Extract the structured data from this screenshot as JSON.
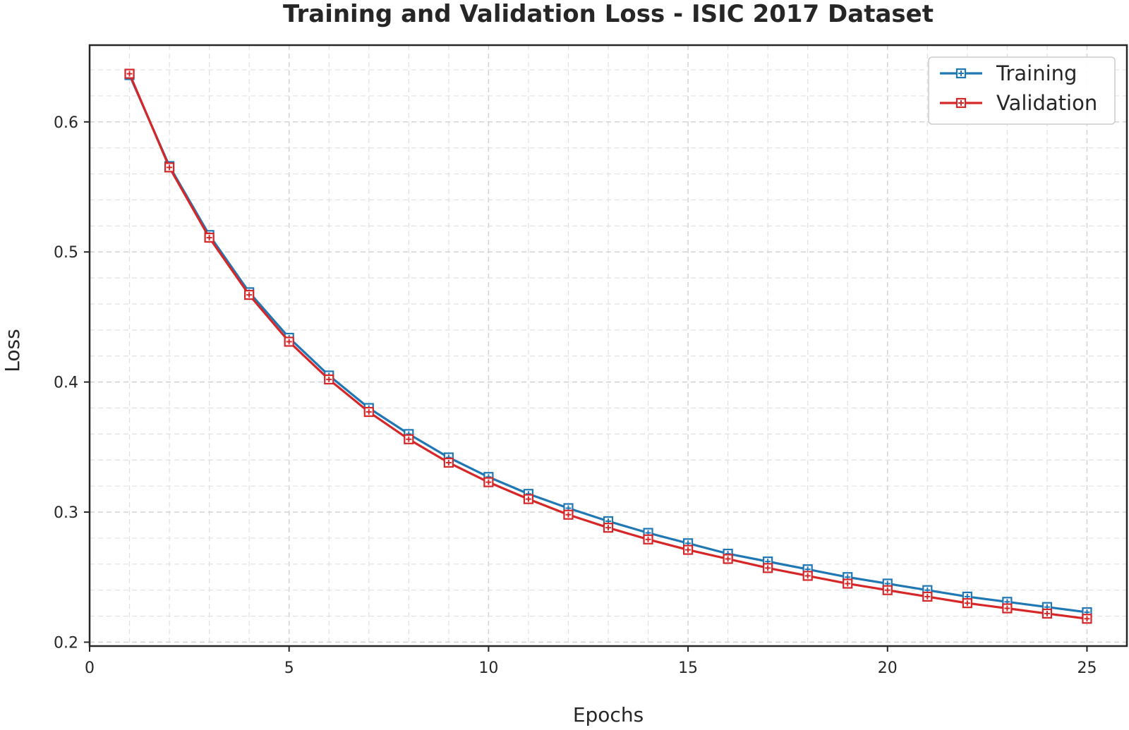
{
  "chart_data": {
    "type": "line",
    "title": "Training and Validation Loss - ISIC 2017 Dataset",
    "xlabel": "Epochs",
    "ylabel": "Loss",
    "xlim": [
      0,
      26
    ],
    "ylim": [
      0.197,
      0.659
    ],
    "x_ticks": [
      0,
      5,
      10,
      15,
      20,
      25
    ],
    "x_tick_labels": [
      "0",
      "5",
      "10",
      "15",
      "20",
      "25"
    ],
    "y_ticks": [
      0.2,
      0.3,
      0.4,
      0.5,
      0.6
    ],
    "y_tick_labels": [
      "0.2",
      "0.3",
      "0.4",
      "0.5",
      "0.6"
    ],
    "grid": true,
    "legend_position": "top-right",
    "x": [
      1,
      2,
      3,
      4,
      5,
      6,
      7,
      8,
      9,
      10,
      11,
      12,
      13,
      14,
      15,
      16,
      17,
      18,
      19,
      20,
      21,
      22,
      23,
      24,
      25
    ],
    "series": [
      {
        "name": "Training",
        "color": "#1f77b4",
        "marker": "plus-box",
        "values": [
          0.636,
          0.566,
          0.513,
          0.469,
          0.434,
          0.405,
          0.38,
          0.36,
          0.342,
          0.327,
          0.314,
          0.303,
          0.293,
          0.284,
          0.276,
          0.268,
          0.262,
          0.256,
          0.25,
          0.245,
          0.24,
          0.235,
          0.231,
          0.227,
          0.223
        ]
      },
      {
        "name": "Validation",
        "color": "#d62728",
        "marker": "plus-box",
        "values": [
          0.637,
          0.565,
          0.511,
          0.467,
          0.431,
          0.402,
          0.377,
          0.356,
          0.338,
          0.323,
          0.31,
          0.298,
          0.288,
          0.279,
          0.271,
          0.264,
          0.257,
          0.251,
          0.245,
          0.24,
          0.235,
          0.23,
          0.226,
          0.222,
          0.218
        ]
      }
    ]
  }
}
